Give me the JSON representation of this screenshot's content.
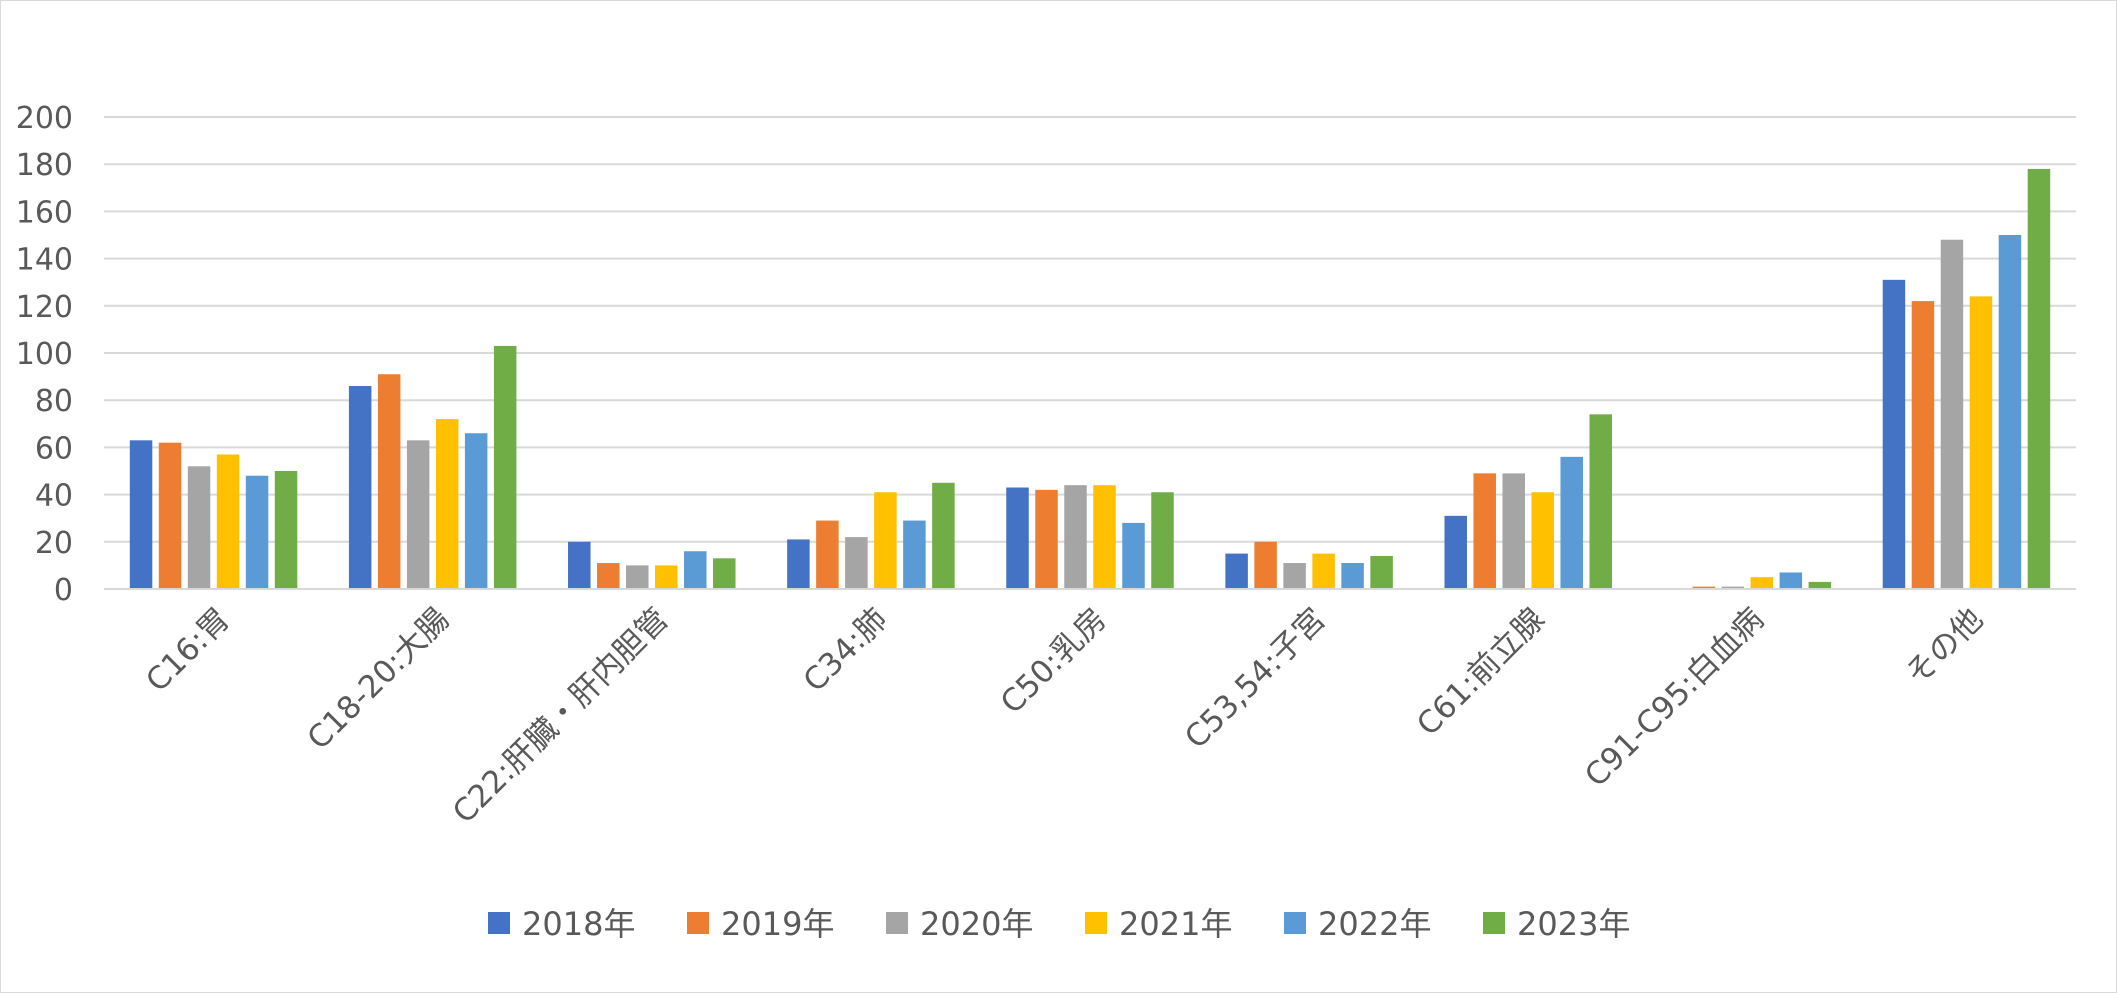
{
  "chart_data": {
    "type": "bar",
    "title": "",
    "xlabel": "",
    "ylabel": "",
    "ylim": [
      0,
      200
    ],
    "yticks": [
      0,
      20,
      40,
      60,
      80,
      100,
      120,
      140,
      160,
      180,
      200
    ],
    "grid": true,
    "legend_position": "bottom",
    "categories": [
      "C16:胃",
      "C18-20:大腸",
      "C22:肝臓・肝内胆管",
      "C34:肺",
      "C50:乳房",
      "C53,54:子宮",
      "C61:前立腺",
      "C91-C95:白血病",
      "その他"
    ],
    "series": [
      {
        "name": "2018年",
        "color": "#4472C4",
        "values": [
          63,
          86,
          20,
          21,
          43,
          15,
          31,
          0,
          131
        ]
      },
      {
        "name": "2019年",
        "color": "#ED7D31",
        "values": [
          62,
          91,
          11,
          29,
          42,
          20,
          49,
          1,
          122
        ]
      },
      {
        "name": "2020年",
        "color": "#A5A5A5",
        "values": [
          52,
          63,
          10,
          22,
          44,
          11,
          49,
          1,
          148
        ]
      },
      {
        "name": "2021年",
        "color": "#FFC000",
        "values": [
          57,
          72,
          10,
          41,
          44,
          15,
          41,
          5,
          124
        ]
      },
      {
        "name": "2022年",
        "color": "#5B9BD5",
        "values": [
          48,
          66,
          16,
          29,
          28,
          11,
          56,
          7,
          150
        ]
      },
      {
        "name": "2023年",
        "color": "#70AD47",
        "values": [
          50,
          103,
          13,
          45,
          41,
          14,
          74,
          3,
          178
        ]
      }
    ]
  }
}
